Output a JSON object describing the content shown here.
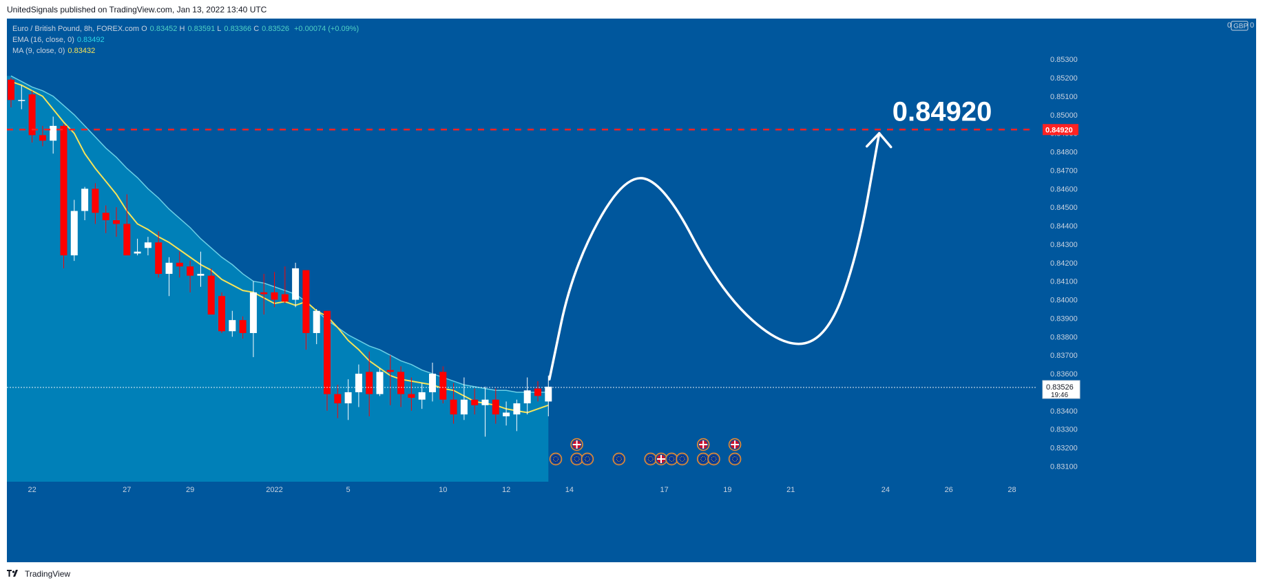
{
  "publisher_line": "UnitedSignals published on TradingView.com, Jan 13, 2022 13:40 UTC",
  "footer": {
    "brand": "TradingView"
  },
  "legend": {
    "symbol": "Euro / British Pound, 8h, FOREX.com",
    "o_label": "O",
    "o": "0.83452",
    "h_label": "H",
    "h": "0.83591",
    "l_label": "L",
    "l": "0.83366",
    "c_label": "C",
    "c": "0.83526",
    "change": "+0.00074 (+0.09%)",
    "ema_label": "EMA (16, close, 0)",
    "ema_value": "0.83492",
    "ma_label": "MA (9, close, 0)",
    "ma_value": "0.83432"
  },
  "price_scale": {
    "currency": "GBP",
    "menu_left": "0",
    "menu_right": "0"
  },
  "annotations": {
    "target_label": "0.84920",
    "target_tag": "0.84920",
    "current_price": "0.83526",
    "countdown": "19:46"
  },
  "colors": {
    "background": "#00579d",
    "band_fill": "#0080b8",
    "up_candle": "#ffffff",
    "down_candle": "#ff0000",
    "ema": "#7fe0f0",
    "ma": "#f6e458",
    "target_line": "#ff2222",
    "projection": "#ffffff"
  },
  "chart_data": {
    "type": "candlestick",
    "symbol": "EURGBP",
    "timeframe": "8h",
    "ylim": [
      0.8302,
      0.8552
    ],
    "y_ticks": [
      "0.85300",
      "0.85200",
      "0.85100",
      "0.85000",
      "0.84900",
      "0.84800",
      "0.84700",
      "0.84600",
      "0.84500",
      "0.84400",
      "0.84300",
      "0.84200",
      "0.84100",
      "0.84000",
      "0.83900",
      "0.83800",
      "0.83700",
      "0.83600",
      "0.83500",
      "0.83400",
      "0.83300",
      "0.83200",
      "0.83100"
    ],
    "x_ticks": [
      {
        "label": "22",
        "index": 2
      },
      {
        "label": "27",
        "index": 11
      },
      {
        "label": "29",
        "index": 17
      },
      {
        "label": "2022",
        "index": 25
      },
      {
        "label": "5",
        "index": 32
      },
      {
        "label": "10",
        "index": 41
      },
      {
        "label": "12",
        "index": 47
      },
      {
        "label": "14",
        "index": 53
      },
      {
        "label": "17",
        "index": 62
      },
      {
        "label": "19",
        "index": 68
      },
      {
        "label": "21",
        "index": 74
      },
      {
        "label": "24",
        "index": 83
      },
      {
        "label": "26",
        "index": 89
      },
      {
        "label": "28",
        "index": 95
      }
    ],
    "candles": [
      {
        "o": 0.8519,
        "h": 0.852,
        "l": 0.8504,
        "c": 0.8508
      },
      {
        "o": 0.8508,
        "h": 0.8516,
        "l": 0.8503,
        "c": 0.8508
      },
      {
        "o": 0.8511,
        "h": 0.8513,
        "l": 0.8485,
        "c": 0.8489
      },
      {
        "o": 0.8489,
        "h": 0.8494,
        "l": 0.8483,
        "c": 0.8486
      },
      {
        "o": 0.8486,
        "h": 0.8499,
        "l": 0.8479,
        "c": 0.8494
      },
      {
        "o": 0.8494,
        "h": 0.8495,
        "l": 0.8417,
        "c": 0.8424
      },
      {
        "o": 0.8424,
        "h": 0.8454,
        "l": 0.8421,
        "c": 0.8448
      },
      {
        "o": 0.8448,
        "h": 0.8461,
        "l": 0.8443,
        "c": 0.846
      },
      {
        "o": 0.846,
        "h": 0.8463,
        "l": 0.8441,
        "c": 0.8447
      },
      {
        "o": 0.8447,
        "h": 0.8451,
        "l": 0.8436,
        "c": 0.8443
      },
      {
        "o": 0.8443,
        "h": 0.845,
        "l": 0.8434,
        "c": 0.8441
      },
      {
        "o": 0.8441,
        "h": 0.8457,
        "l": 0.8424,
        "c": 0.8424
      },
      {
        "o": 0.8425,
        "h": 0.8433,
        "l": 0.8424,
        "c": 0.8426
      },
      {
        "o": 0.8428,
        "h": 0.8434,
        "l": 0.8424,
        "c": 0.8431
      },
      {
        "o": 0.8431,
        "h": 0.8437,
        "l": 0.8412,
        "c": 0.8414
      },
      {
        "o": 0.8414,
        "h": 0.8423,
        "l": 0.8402,
        "c": 0.842
      },
      {
        "o": 0.842,
        "h": 0.8426,
        "l": 0.8412,
        "c": 0.8418
      },
      {
        "o": 0.8418,
        "h": 0.8421,
        "l": 0.8404,
        "c": 0.8413
      },
      {
        "o": 0.8413,
        "h": 0.8426,
        "l": 0.8407,
        "c": 0.8414
      },
      {
        "o": 0.8413,
        "h": 0.8417,
        "l": 0.8392,
        "c": 0.8392
      },
      {
        "o": 0.8402,
        "h": 0.8404,
        "l": 0.8382,
        "c": 0.8383
      },
      {
        "o": 0.8383,
        "h": 0.8394,
        "l": 0.838,
        "c": 0.8389
      },
      {
        "o": 0.8389,
        "h": 0.8391,
        "l": 0.8379,
        "c": 0.8382
      },
      {
        "o": 0.8382,
        "h": 0.841,
        "l": 0.8369,
        "c": 0.8404
      },
      {
        "o": 0.8404,
        "h": 0.8414,
        "l": 0.8392,
        "c": 0.8403
      },
      {
        "o": 0.8404,
        "h": 0.8415,
        "l": 0.8396,
        "c": 0.84
      },
      {
        "o": 0.8403,
        "h": 0.8418,
        "l": 0.8398,
        "c": 0.8399
      },
      {
        "o": 0.84,
        "h": 0.842,
        "l": 0.8396,
        "c": 0.8417
      },
      {
        "o": 0.8416,
        "h": 0.8416,
        "l": 0.8373,
        "c": 0.8382
      },
      {
        "o": 0.8382,
        "h": 0.8395,
        "l": 0.8376,
        "c": 0.8394
      },
      {
        "o": 0.8394,
        "h": 0.8394,
        "l": 0.834,
        "c": 0.8349
      },
      {
        "o": 0.8349,
        "h": 0.8354,
        "l": 0.8336,
        "c": 0.8344
      },
      {
        "o": 0.8344,
        "h": 0.8357,
        "l": 0.8335,
        "c": 0.835
      },
      {
        "o": 0.835,
        "h": 0.8365,
        "l": 0.8342,
        "c": 0.836
      },
      {
        "o": 0.8361,
        "h": 0.8372,
        "l": 0.8337,
        "c": 0.8349
      },
      {
        "o": 0.8349,
        "h": 0.8363,
        "l": 0.8348,
        "c": 0.8361
      },
      {
        "o": 0.8362,
        "h": 0.837,
        "l": 0.8343,
        "c": 0.8361
      },
      {
        "o": 0.8361,
        "h": 0.8364,
        "l": 0.8342,
        "c": 0.8349
      },
      {
        "o": 0.8349,
        "h": 0.8358,
        "l": 0.834,
        "c": 0.8347
      },
      {
        "o": 0.8346,
        "h": 0.8355,
        "l": 0.8341,
        "c": 0.835
      },
      {
        "o": 0.835,
        "h": 0.8366,
        "l": 0.8345,
        "c": 0.836
      },
      {
        "o": 0.8361,
        "h": 0.8364,
        "l": 0.8344,
        "c": 0.8346
      },
      {
        "o": 0.8346,
        "h": 0.8355,
        "l": 0.8333,
        "c": 0.8338
      },
      {
        "o": 0.8338,
        "h": 0.8358,
        "l": 0.8335,
        "c": 0.8346
      },
      {
        "o": 0.8346,
        "h": 0.8352,
        "l": 0.8338,
        "c": 0.8343
      },
      {
        "o": 0.8343,
        "h": 0.8353,
        "l": 0.8326,
        "c": 0.8346
      },
      {
        "o": 0.8346,
        "h": 0.8352,
        "l": 0.8333,
        "c": 0.8338
      },
      {
        "o": 0.8337,
        "h": 0.8345,
        "l": 0.8332,
        "c": 0.8339
      },
      {
        "o": 0.8338,
        "h": 0.8346,
        "l": 0.8329,
        "c": 0.8344
      },
      {
        "o": 0.8344,
        "h": 0.8358,
        "l": 0.8338,
        "c": 0.8351
      },
      {
        "o": 0.8352,
        "h": 0.8356,
        "l": 0.8345,
        "c": 0.8348
      },
      {
        "o": 0.8345,
        "h": 0.8359,
        "l": 0.8337,
        "c": 0.8353
      }
    ],
    "ema_16": [
      0.8521,
      0.8518,
      0.8515,
      0.8513,
      0.851,
      0.8505,
      0.85,
      0.8494,
      0.8488,
      0.8482,
      0.8477,
      0.8471,
      0.8466,
      0.846,
      0.8455,
      0.8449,
      0.8444,
      0.8439,
      0.8433,
      0.8428,
      0.8423,
      0.8419,
      0.8414,
      0.841,
      0.8409,
      0.8407,
      0.8405,
      0.8403,
      0.8399,
      0.8394,
      0.8389,
      0.8385,
      0.8381,
      0.8378,
      0.8375,
      0.8373,
      0.837,
      0.8367,
      0.8365,
      0.8362,
      0.836,
      0.8358,
      0.8356,
      0.8354,
      0.8353,
      0.8352,
      0.8351,
      0.8351,
      0.835,
      0.835,
      0.835,
      0.835
    ],
    "ma_9": [
      0.8518,
      0.8516,
      0.8513,
      0.851,
      0.8503,
      0.8496,
      0.849,
      0.8479,
      0.8471,
      0.8464,
      0.8457,
      0.8448,
      0.8441,
      0.8438,
      0.8434,
      0.8431,
      0.8427,
      0.8423,
      0.8419,
      0.8416,
      0.8411,
      0.8408,
      0.8405,
      0.8404,
      0.8401,
      0.8398,
      0.8399,
      0.8397,
      0.8399,
      0.8394,
      0.8391,
      0.8385,
      0.8378,
      0.8373,
      0.8367,
      0.8363,
      0.8359,
      0.8357,
      0.8356,
      0.8355,
      0.8354,
      0.8352,
      0.8351,
      0.8348,
      0.8345,
      0.8344,
      0.8343,
      0.8341,
      0.834,
      0.8339,
      0.8341,
      0.8343
    ],
    "target_level": 0.8492,
    "current_price": 0.83526,
    "projection": [
      {
        "index": 51.1,
        "price": 0.8357
      },
      {
        "index": 53.3,
        "price": 0.8417
      },
      {
        "index": 58.2,
        "price": 0.8468
      },
      {
        "index": 62.0,
        "price": 0.8463
      },
      {
        "index": 67.4,
        "price": 0.8404
      },
      {
        "index": 73.3,
        "price": 0.8374
      },
      {
        "index": 77.4,
        "price": 0.8379
      },
      {
        "index": 80.3,
        "price": 0.8423
      },
      {
        "index": 82.4,
        "price": 0.849
      }
    ],
    "events": [
      {
        "index": 51.7,
        "row": 0,
        "flag": "eu"
      },
      {
        "index": 53.7,
        "row": 0,
        "flag": "eu"
      },
      {
        "index": 53.7,
        "row": 1,
        "flag": "uk"
      },
      {
        "index": 54.7,
        "row": 0,
        "flag": "eu"
      },
      {
        "index": 57.7,
        "row": 0,
        "flag": "eu"
      },
      {
        "index": 60.7,
        "row": 0,
        "flag": "eu"
      },
      {
        "index": 61.7,
        "row": 0,
        "flag": "uk"
      },
      {
        "index": 62.7,
        "row": 0,
        "flag": "eu"
      },
      {
        "index": 63.7,
        "row": 0,
        "flag": "eu"
      },
      {
        "index": 65.7,
        "row": 0,
        "flag": "eu"
      },
      {
        "index": 66.7,
        "row": 0,
        "flag": "eu"
      },
      {
        "index": 65.7,
        "row": 1,
        "flag": "uk"
      },
      {
        "index": 68.7,
        "row": 0,
        "flag": "eu"
      },
      {
        "index": 68.7,
        "row": 1,
        "flag": "uk"
      }
    ]
  }
}
